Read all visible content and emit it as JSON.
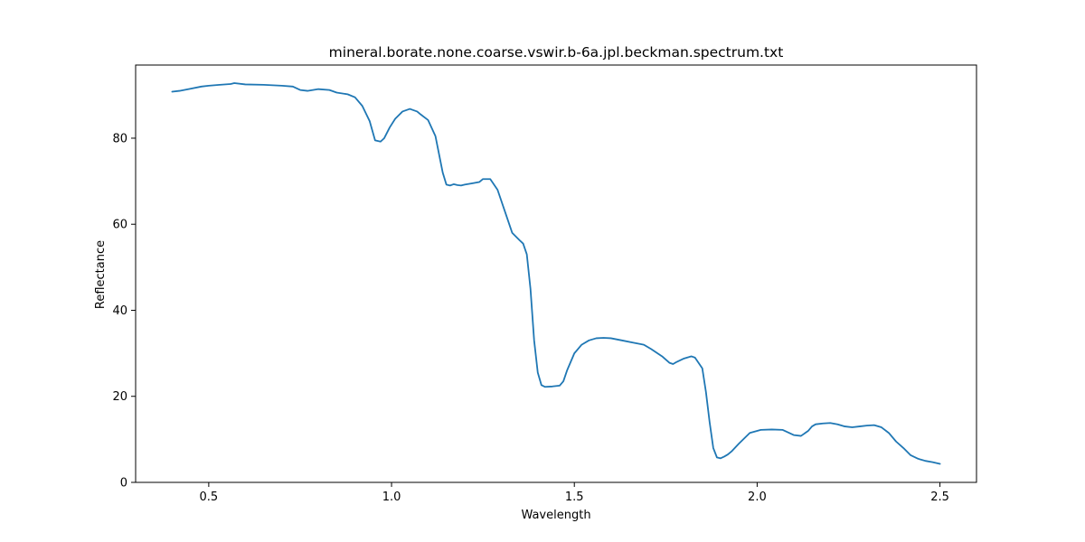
{
  "chart_data": {
    "type": "line",
    "title": "mineral.borate.none.coarse.vswir.b-6a.jpl.beckman.spectrum.txt",
    "xlabel": "Wavelength",
    "ylabel": "Reflectance",
    "xlim": [
      0.3,
      2.6
    ],
    "ylim": [
      0,
      97
    ],
    "xticks": [
      0.5,
      1.0,
      1.5,
      2.0,
      2.5
    ],
    "xtick_labels": [
      "0.5",
      "1.0",
      "1.5",
      "2.0",
      "2.5"
    ],
    "yticks": [
      0,
      20,
      40,
      60,
      80
    ],
    "ytick_labels": [
      "0",
      "20",
      "40",
      "60",
      "80"
    ],
    "grid": false,
    "line_color": "#1f77b4",
    "series": [
      {
        "x": [
          0.4,
          0.42,
          0.45,
          0.48,
          0.5,
          0.53,
          0.56,
          0.57,
          0.6,
          0.65,
          0.7,
          0.73,
          0.75,
          0.77,
          0.8,
          0.83,
          0.85,
          0.88,
          0.9,
          0.92,
          0.94,
          0.955,
          0.97,
          0.98,
          0.995,
          1.01,
          1.03,
          1.05,
          1.07,
          1.08,
          1.1,
          1.12,
          1.14,
          1.15,
          1.16,
          1.17,
          1.18,
          1.19,
          1.2,
          1.22,
          1.24,
          1.25,
          1.27,
          1.29,
          1.31,
          1.33,
          1.35,
          1.36,
          1.37,
          1.38,
          1.39,
          1.4,
          1.41,
          1.42,
          1.44,
          1.46,
          1.47,
          1.48,
          1.5,
          1.52,
          1.54,
          1.56,
          1.58,
          1.6,
          1.63,
          1.66,
          1.69,
          1.71,
          1.74,
          1.76,
          1.77,
          1.78,
          1.8,
          1.82,
          1.83,
          1.85,
          1.86,
          1.87,
          1.88,
          1.89,
          1.9,
          1.91,
          1.92,
          1.93,
          1.95,
          1.98,
          2.01,
          2.04,
          2.07,
          2.1,
          2.12,
          2.14,
          2.15,
          2.16,
          2.18,
          2.2,
          2.22,
          2.24,
          2.26,
          2.28,
          2.3,
          2.32,
          2.34,
          2.36,
          2.38,
          2.4,
          2.42,
          2.44,
          2.46,
          2.48,
          2.5
        ],
        "y": [
          90.8,
          91.0,
          91.5,
          92.0,
          92.2,
          92.4,
          92.6,
          92.8,
          92.5,
          92.4,
          92.2,
          92.0,
          91.2,
          91.0,
          91.4,
          91.2,
          90.6,
          90.2,
          89.5,
          87.5,
          84.0,
          79.5,
          79.2,
          80.0,
          82.5,
          84.5,
          86.2,
          86.8,
          86.2,
          85.5,
          84.2,
          80.5,
          72.0,
          69.2,
          69.0,
          69.3,
          69.1,
          69.0,
          69.2,
          69.5,
          69.8,
          70.5,
          70.5,
          68.0,
          63.0,
          58.0,
          56.3,
          55.5,
          53.0,
          45.0,
          33.0,
          25.5,
          22.6,
          22.2,
          22.3,
          22.5,
          23.5,
          26.0,
          30.0,
          32.0,
          33.0,
          33.5,
          33.6,
          33.5,
          33.0,
          32.5,
          32.0,
          31.0,
          29.3,
          27.8,
          27.5,
          28.0,
          28.8,
          29.3,
          29.0,
          26.5,
          21.0,
          14.0,
          8.0,
          5.8,
          5.6,
          6.0,
          6.5,
          7.2,
          9.0,
          11.5,
          12.2,
          12.3,
          12.2,
          11.0,
          10.8,
          12.0,
          13.0,
          13.5,
          13.7,
          13.8,
          13.5,
          13.0,
          12.8,
          13.0,
          13.2,
          13.3,
          12.8,
          11.5,
          9.5,
          8.0,
          6.3,
          5.5,
          5.0,
          4.7,
          4.3
        ]
      }
    ]
  }
}
